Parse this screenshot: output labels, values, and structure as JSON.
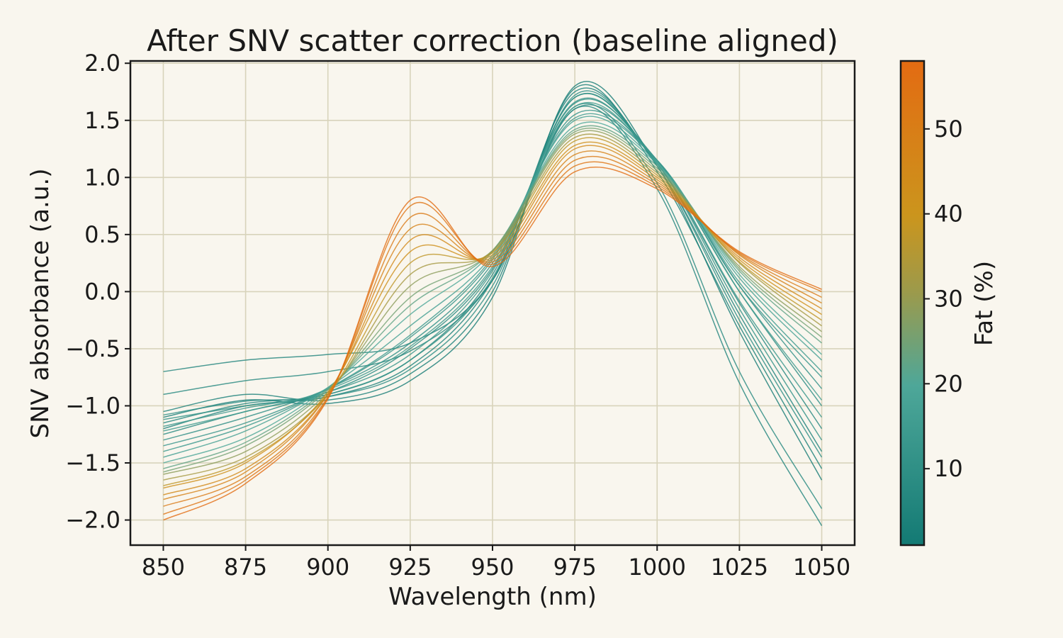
{
  "chart_data": {
    "type": "line",
    "title": "After SNV scatter correction (baseline aligned)",
    "xlabel": "Wavelength (nm)",
    "ylabel": "SNV absorbance (a.u.)",
    "xlim": [
      840,
      1060
    ],
    "ylim": [
      -2.22,
      2.02
    ],
    "xticks": [
      850,
      875,
      900,
      925,
      950,
      975,
      1000,
      1025,
      1050
    ],
    "xtick_labels": [
      "850",
      "875",
      "900",
      "925",
      "950",
      "975",
      "1000",
      "1025",
      "1050"
    ],
    "yticks": [
      2.0,
      1.5,
      1.0,
      0.5,
      0.0,
      -0.5,
      -1.0,
      -1.5,
      -2.0
    ],
    "ytick_labels": [
      "2.0",
      "1.5",
      "1.0",
      "0.5",
      "0.0",
      "−0.5",
      "−1.0",
      "−1.5",
      "−2.0"
    ],
    "grid": true,
    "x": [
      850,
      875,
      900,
      925,
      950,
      975,
      1000,
      1025,
      1050
    ],
    "colormap_anchors": [
      {
        "fat": 1,
        "color": "#137a74"
      },
      {
        "fat": 20,
        "color": "#4ea799"
      },
      {
        "fat": 40,
        "color": "#cb951d"
      },
      {
        "fat": 58,
        "color": "#e36b12"
      }
    ],
    "series": [
      {
        "fat": 2,
        "values": [
          -1.1,
          -0.95,
          -0.98,
          -0.78,
          -0.05,
          1.8,
          1.1,
          -0.35,
          -1.65
        ]
      },
      {
        "fat": 3,
        "values": [
          -1.05,
          -0.9,
          -0.95,
          -0.72,
          0.0,
          1.78,
          1.05,
          -0.3,
          -1.55
        ]
      },
      {
        "fat": 4,
        "values": [
          -1.2,
          -1.0,
          -0.92,
          -0.65,
          0.1,
          1.75,
          1.1,
          -0.2,
          -1.4
        ]
      },
      {
        "fat": 5,
        "values": [
          -0.7,
          -0.6,
          -0.55,
          -0.45,
          0.1,
          1.6,
          0.9,
          -0.8,
          -2.05
        ]
      },
      {
        "fat": 6,
        "values": [
          -1.15,
          -0.98,
          -0.9,
          -0.6,
          0.15,
          1.7,
          1.12,
          -0.1,
          -1.2
        ]
      },
      {
        "fat": 7,
        "values": [
          -0.9,
          -0.78,
          -0.7,
          -0.52,
          0.1,
          1.62,
          0.95,
          -0.7,
          -1.9
        ]
      },
      {
        "fat": 8,
        "values": [
          -1.25,
          -1.05,
          -0.88,
          -0.5,
          0.2,
          1.65,
          1.15,
          0.0,
          -1.0
        ]
      },
      {
        "fat": 9,
        "values": [
          -1.08,
          -0.96,
          -0.92,
          -0.68,
          0.05,
          1.72,
          1.1,
          -0.25,
          -1.45
        ]
      },
      {
        "fat": 10,
        "values": [
          -1.3,
          -1.1,
          -0.85,
          -0.45,
          0.25,
          1.6,
          1.15,
          0.05,
          -0.85
        ]
      },
      {
        "fat": 11,
        "values": [
          -1.12,
          -1.0,
          -0.9,
          -0.6,
          0.12,
          1.7,
          1.12,
          -0.15,
          -1.3
        ]
      },
      {
        "fat": 12,
        "values": [
          -1.35,
          -1.15,
          -0.85,
          -0.4,
          0.28,
          1.55,
          1.15,
          0.05,
          -0.75
        ]
      },
      {
        "fat": 13,
        "values": [
          -1.18,
          -1.02,
          -0.88,
          -0.55,
          0.18,
          1.66,
          1.13,
          -0.08,
          -1.1
        ]
      },
      {
        "fat": 14,
        "values": [
          -1.4,
          -1.18,
          -0.85,
          -0.38,
          0.3,
          1.52,
          1.15,
          0.08,
          -0.7
        ]
      },
      {
        "fat": 15,
        "values": [
          -1.22,
          -1.05,
          -0.86,
          -0.48,
          0.22,
          1.62,
          1.14,
          0.0,
          -0.95
        ]
      },
      {
        "fat": 17,
        "values": [
          -1.45,
          -1.22,
          -0.84,
          -0.3,
          0.32,
          1.5,
          1.13,
          0.12,
          -0.6
        ]
      },
      {
        "fat": 20,
        "values": [
          -1.5,
          -1.28,
          -0.84,
          -0.2,
          0.35,
          1.45,
          1.12,
          0.15,
          -0.55
        ]
      },
      {
        "fat": 23,
        "values": [
          -1.55,
          -1.32,
          -0.85,
          -0.12,
          0.36,
          1.42,
          1.1,
          0.18,
          -0.45
        ]
      },
      {
        "fat": 26,
        "values": [
          -1.58,
          -1.35,
          -0.86,
          -0.05,
          0.36,
          1.4,
          1.08,
          0.2,
          -0.4
        ]
      },
      {
        "fat": 30,
        "values": [
          -1.6,
          -1.4,
          -0.88,
          0.05,
          0.36,
          1.38,
          1.06,
          0.22,
          -0.35
        ]
      },
      {
        "fat": 34,
        "values": [
          -1.65,
          -1.45,
          -0.9,
          0.15,
          0.35,
          1.35,
          1.04,
          0.25,
          -0.3
        ]
      },
      {
        "fat": 38,
        "values": [
          -1.7,
          -1.48,
          -0.9,
          0.25,
          0.34,
          1.32,
          1.02,
          0.26,
          -0.25
        ]
      },
      {
        "fat": 42,
        "values": [
          -1.72,
          -1.5,
          -0.88,
          0.35,
          0.32,
          1.28,
          1.0,
          0.28,
          -0.2
        ]
      },
      {
        "fat": 45,
        "values": [
          -1.78,
          -1.55,
          -0.9,
          0.45,
          0.3,
          1.25,
          0.98,
          0.3,
          -0.15
        ]
      },
      {
        "fat": 48,
        "values": [
          -1.82,
          -1.58,
          -0.9,
          0.55,
          0.28,
          1.2,
          0.96,
          0.32,
          -0.1
        ]
      },
      {
        "fat": 51,
        "values": [
          -1.88,
          -1.62,
          -0.92,
          0.65,
          0.26,
          1.15,
          0.94,
          0.33,
          -0.05
        ]
      },
      {
        "fat": 54,
        "values": [
          -1.95,
          -1.65,
          -0.93,
          0.75,
          0.24,
          1.1,
          0.92,
          0.34,
          0.0
        ]
      },
      {
        "fat": 57,
        "values": [
          -2.0,
          -1.68,
          -0.94,
          0.8,
          0.22,
          1.05,
          0.9,
          0.35,
          0.02
        ]
      }
    ],
    "colorbar": {
      "label": "Fat (%)",
      "min": 1,
      "max": 58,
      "ticks": [
        10,
        20,
        30,
        40,
        50
      ],
      "tick_labels": [
        "10",
        "20",
        "30",
        "40",
        "50"
      ]
    }
  }
}
